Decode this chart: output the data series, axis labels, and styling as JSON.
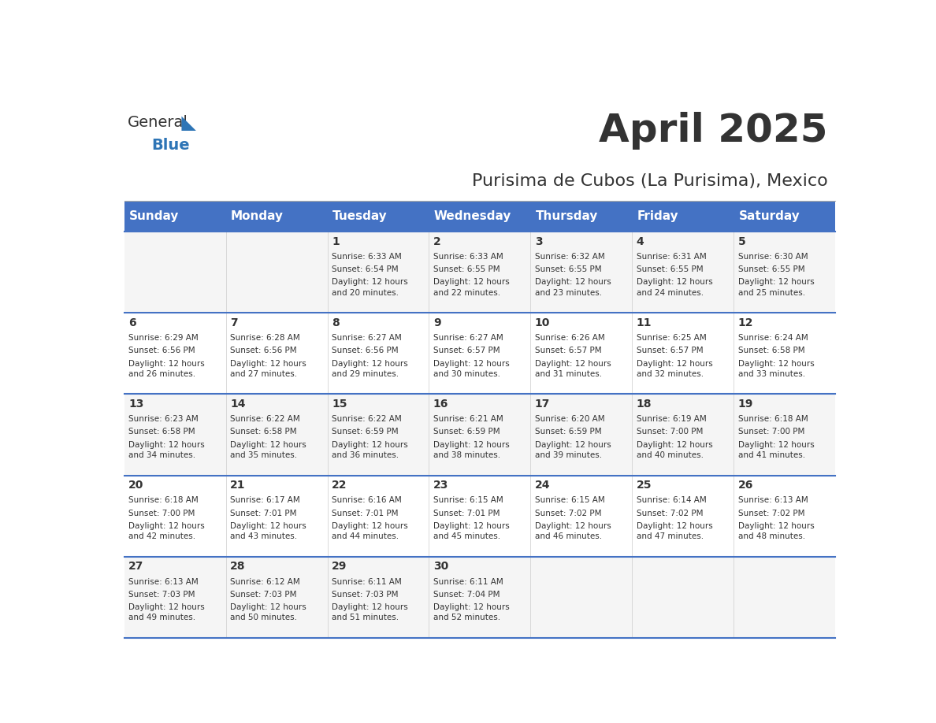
{
  "title": "April 2025",
  "subtitle": "Purisima de Cubos (La Purisima), Mexico",
  "header_color": "#4472C4",
  "header_text_color": "#FFFFFF",
  "days_of_week": [
    "Sunday",
    "Monday",
    "Tuesday",
    "Wednesday",
    "Thursday",
    "Friday",
    "Saturday"
  ],
  "background_color": "#FFFFFF",
  "cell_bg_even": "#F5F5F5",
  "cell_bg_odd": "#FFFFFF",
  "border_color": "#4472C4",
  "text_color": "#333333",
  "logo_color1": "#333333",
  "logo_color2": "#2E75B6",
  "weeks": [
    [
      {
        "day": "",
        "sunrise": "",
        "sunset": "",
        "daylight": ""
      },
      {
        "day": "",
        "sunrise": "",
        "sunset": "",
        "daylight": ""
      },
      {
        "day": "1",
        "sunrise": "Sunrise: 6:33 AM",
        "sunset": "Sunset: 6:54 PM",
        "daylight": "Daylight: 12 hours\nand 20 minutes."
      },
      {
        "day": "2",
        "sunrise": "Sunrise: 6:33 AM",
        "sunset": "Sunset: 6:55 PM",
        "daylight": "Daylight: 12 hours\nand 22 minutes."
      },
      {
        "day": "3",
        "sunrise": "Sunrise: 6:32 AM",
        "sunset": "Sunset: 6:55 PM",
        "daylight": "Daylight: 12 hours\nand 23 minutes."
      },
      {
        "day": "4",
        "sunrise": "Sunrise: 6:31 AM",
        "sunset": "Sunset: 6:55 PM",
        "daylight": "Daylight: 12 hours\nand 24 minutes."
      },
      {
        "day": "5",
        "sunrise": "Sunrise: 6:30 AM",
        "sunset": "Sunset: 6:55 PM",
        "daylight": "Daylight: 12 hours\nand 25 minutes."
      }
    ],
    [
      {
        "day": "6",
        "sunrise": "Sunrise: 6:29 AM",
        "sunset": "Sunset: 6:56 PM",
        "daylight": "Daylight: 12 hours\nand 26 minutes."
      },
      {
        "day": "7",
        "sunrise": "Sunrise: 6:28 AM",
        "sunset": "Sunset: 6:56 PM",
        "daylight": "Daylight: 12 hours\nand 27 minutes."
      },
      {
        "day": "8",
        "sunrise": "Sunrise: 6:27 AM",
        "sunset": "Sunset: 6:56 PM",
        "daylight": "Daylight: 12 hours\nand 29 minutes."
      },
      {
        "day": "9",
        "sunrise": "Sunrise: 6:27 AM",
        "sunset": "Sunset: 6:57 PM",
        "daylight": "Daylight: 12 hours\nand 30 minutes."
      },
      {
        "day": "10",
        "sunrise": "Sunrise: 6:26 AM",
        "sunset": "Sunset: 6:57 PM",
        "daylight": "Daylight: 12 hours\nand 31 minutes."
      },
      {
        "day": "11",
        "sunrise": "Sunrise: 6:25 AM",
        "sunset": "Sunset: 6:57 PM",
        "daylight": "Daylight: 12 hours\nand 32 minutes."
      },
      {
        "day": "12",
        "sunrise": "Sunrise: 6:24 AM",
        "sunset": "Sunset: 6:58 PM",
        "daylight": "Daylight: 12 hours\nand 33 minutes."
      }
    ],
    [
      {
        "day": "13",
        "sunrise": "Sunrise: 6:23 AM",
        "sunset": "Sunset: 6:58 PM",
        "daylight": "Daylight: 12 hours\nand 34 minutes."
      },
      {
        "day": "14",
        "sunrise": "Sunrise: 6:22 AM",
        "sunset": "Sunset: 6:58 PM",
        "daylight": "Daylight: 12 hours\nand 35 minutes."
      },
      {
        "day": "15",
        "sunrise": "Sunrise: 6:22 AM",
        "sunset": "Sunset: 6:59 PM",
        "daylight": "Daylight: 12 hours\nand 36 minutes."
      },
      {
        "day": "16",
        "sunrise": "Sunrise: 6:21 AM",
        "sunset": "Sunset: 6:59 PM",
        "daylight": "Daylight: 12 hours\nand 38 minutes."
      },
      {
        "day": "17",
        "sunrise": "Sunrise: 6:20 AM",
        "sunset": "Sunset: 6:59 PM",
        "daylight": "Daylight: 12 hours\nand 39 minutes."
      },
      {
        "day": "18",
        "sunrise": "Sunrise: 6:19 AM",
        "sunset": "Sunset: 7:00 PM",
        "daylight": "Daylight: 12 hours\nand 40 minutes."
      },
      {
        "day": "19",
        "sunrise": "Sunrise: 6:18 AM",
        "sunset": "Sunset: 7:00 PM",
        "daylight": "Daylight: 12 hours\nand 41 minutes."
      }
    ],
    [
      {
        "day": "20",
        "sunrise": "Sunrise: 6:18 AM",
        "sunset": "Sunset: 7:00 PM",
        "daylight": "Daylight: 12 hours\nand 42 minutes."
      },
      {
        "day": "21",
        "sunrise": "Sunrise: 6:17 AM",
        "sunset": "Sunset: 7:01 PM",
        "daylight": "Daylight: 12 hours\nand 43 minutes."
      },
      {
        "day": "22",
        "sunrise": "Sunrise: 6:16 AM",
        "sunset": "Sunset: 7:01 PM",
        "daylight": "Daylight: 12 hours\nand 44 minutes."
      },
      {
        "day": "23",
        "sunrise": "Sunrise: 6:15 AM",
        "sunset": "Sunset: 7:01 PM",
        "daylight": "Daylight: 12 hours\nand 45 minutes."
      },
      {
        "day": "24",
        "sunrise": "Sunrise: 6:15 AM",
        "sunset": "Sunset: 7:02 PM",
        "daylight": "Daylight: 12 hours\nand 46 minutes."
      },
      {
        "day": "25",
        "sunrise": "Sunrise: 6:14 AM",
        "sunset": "Sunset: 7:02 PM",
        "daylight": "Daylight: 12 hours\nand 47 minutes."
      },
      {
        "day": "26",
        "sunrise": "Sunrise: 6:13 AM",
        "sunset": "Sunset: 7:02 PM",
        "daylight": "Daylight: 12 hours\nand 48 minutes."
      }
    ],
    [
      {
        "day": "27",
        "sunrise": "Sunrise: 6:13 AM",
        "sunset": "Sunset: 7:03 PM",
        "daylight": "Daylight: 12 hours\nand 49 minutes."
      },
      {
        "day": "28",
        "sunrise": "Sunrise: 6:12 AM",
        "sunset": "Sunset: 7:03 PM",
        "daylight": "Daylight: 12 hours\nand 50 minutes."
      },
      {
        "day": "29",
        "sunrise": "Sunrise: 6:11 AM",
        "sunset": "Sunset: 7:03 PM",
        "daylight": "Daylight: 12 hours\nand 51 minutes."
      },
      {
        "day": "30",
        "sunrise": "Sunrise: 6:11 AM",
        "sunset": "Sunset: 7:04 PM",
        "daylight": "Daylight: 12 hours\nand 52 minutes."
      },
      {
        "day": "",
        "sunrise": "",
        "sunset": "",
        "daylight": ""
      },
      {
        "day": "",
        "sunrise": "",
        "sunset": "",
        "daylight": ""
      },
      {
        "day": "",
        "sunrise": "",
        "sunset": "",
        "daylight": ""
      }
    ]
  ]
}
